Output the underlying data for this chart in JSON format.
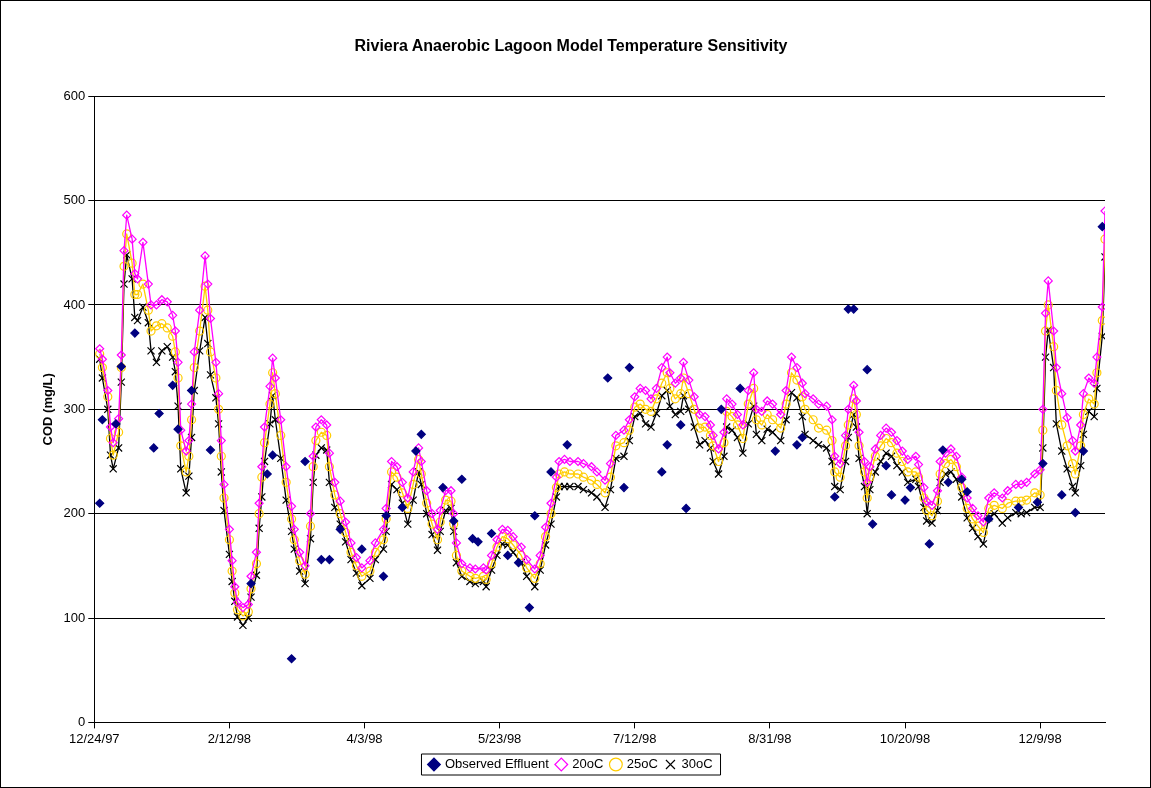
{
  "chart_data": {
    "type": "line",
    "title": "Riviera Anaerobic Lagoon Model Temperature Sensitivity",
    "ylabel": "COD (mg/L)",
    "xlim": [
      "1997-12-24",
      "1999-01-02"
    ],
    "xticks": [
      {
        "value": "1997-12-24",
        "label": "12/24/97"
      },
      {
        "value": "1998-02-12",
        "label": "2/12/98"
      },
      {
        "value": "1998-04-03",
        "label": "4/3/98"
      },
      {
        "value": "1998-05-23",
        "label": "5/23/98"
      },
      {
        "value": "1998-07-12",
        "label": "7/12/98"
      },
      {
        "value": "1998-08-31",
        "label": "8/31/98"
      },
      {
        "value": "1998-10-20",
        "label": "10/20/98"
      },
      {
        "value": "1998-12-09",
        "label": "12/9/98"
      }
    ],
    "ylim": [
      0,
      600
    ],
    "yticks": [
      0,
      100,
      200,
      300,
      400,
      500,
      600
    ],
    "grid": "y",
    "legend": "bottom",
    "x": [
      "1997-12-26",
      "1997-12-27",
      "1997-12-29",
      "1997-12-30",
      "1997-12-31",
      "1998-01-02",
      "1998-01-03",
      "1998-01-04",
      "1998-01-05",
      "1998-01-07",
      "1998-01-08",
      "1998-01-09",
      "1998-01-11",
      "1998-01-13",
      "1998-01-14",
      "1998-01-16",
      "1998-01-18",
      "1998-01-20",
      "1998-01-22",
      "1998-01-23",
      "1998-01-24",
      "1998-01-25",
      "1998-01-27",
      "1998-01-28",
      "1998-01-29",
      "1998-01-30",
      "1998-02-01",
      "1998-02-03",
      "1998-02-04",
      "1998-02-05",
      "1998-02-07",
      "1998-02-08",
      "1998-02-09",
      "1998-02-10",
      "1998-02-12",
      "1998-02-13",
      "1998-02-14",
      "1998-02-15",
      "1998-02-17",
      "1998-02-19",
      "1998-02-20",
      "1998-02-22",
      "1998-02-23",
      "1998-02-24",
      "1998-02-25",
      "1998-02-27",
      "1998-02-28",
      "1998-03-01",
      "1998-03-03",
      "1998-03-05",
      "1998-03-07",
      "1998-03-08",
      "1998-03-10",
      "1998-03-12",
      "1998-03-14",
      "1998-03-15",
      "1998-03-16",
      "1998-03-18",
      "1998-03-20",
      "1998-03-21",
      "1998-03-23",
      "1998-03-25",
      "1998-03-27",
      "1998-03-29",
      "1998-03-31",
      "1998-04-02",
      "1998-04-05",
      "1998-04-07",
      "1998-04-10",
      "1998-04-11",
      "1998-04-13",
      "1998-04-15",
      "1998-04-17",
      "1998-04-19",
      "1998-04-21",
      "1998-04-23",
      "1998-04-24",
      "1998-04-26",
      "1998-04-28",
      "1998-04-30",
      "1998-05-01",
      "1998-05-03",
      "1998-05-05",
      "1998-05-06",
      "1998-05-07",
      "1998-05-09",
      "1998-05-12",
      "1998-05-14",
      "1998-05-17",
      "1998-05-18",
      "1998-05-20",
      "1998-05-22",
      "1998-05-24",
      "1998-05-26",
      "1998-05-28",
      "1998-05-31",
      "1998-06-02",
      "1998-06-05",
      "1998-06-07",
      "1998-06-09",
      "1998-06-11",
      "1998-06-13",
      "1998-06-14",
      "1998-06-16",
      "1998-06-18",
      "1998-06-21",
      "1998-06-23",
      "1998-06-26",
      "1998-06-28",
      "1998-07-01",
      "1998-07-03",
      "1998-07-05",
      "1998-07-08",
      "1998-07-10",
      "1998-07-12",
      "1998-07-14",
      "1998-07-16",
      "1998-07-18",
      "1998-07-20",
      "1998-07-22",
      "1998-07-24",
      "1998-07-25",
      "1998-07-27",
      "1998-07-29",
      "1998-07-30",
      "1998-08-01",
      "1998-08-03",
      "1998-08-05",
      "1998-08-07",
      "1998-08-09",
      "1998-08-10",
      "1998-08-12",
      "1998-08-14",
      "1998-08-15",
      "1998-08-17",
      "1998-08-19",
      "1998-08-21",
      "1998-08-23",
      "1998-08-25",
      "1998-08-26",
      "1998-08-28",
      "1998-08-30",
      "1998-09-01",
      "1998-09-04",
      "1998-09-06",
      "1998-09-08",
      "1998-09-10",
      "1998-09-12",
      "1998-09-13",
      "1998-09-16",
      "1998-09-18",
      "1998-09-21",
      "1998-09-23",
      "1998-09-24",
      "1998-09-26",
      "1998-09-28",
      "1998-09-29",
      "1998-10-01",
      "1998-10-02",
      "1998-10-03",
      "1998-10-05",
      "1998-10-06",
      "1998-10-07",
      "1998-10-09",
      "1998-10-11",
      "1998-10-13",
      "1998-10-15",
      "1998-10-17",
      "1998-10-19",
      "1998-10-21",
      "1998-10-24",
      "1998-10-25",
      "1998-10-27",
      "1998-10-28",
      "1998-10-30",
      "1998-11-01",
      "1998-11-02",
      "1998-11-04",
      "1998-11-06",
      "1998-11-08",
      "1998-11-10",
      "1998-11-12",
      "1998-11-14",
      "1998-11-16",
      "1998-11-18",
      "1998-11-20",
      "1998-11-22",
      "1998-11-25",
      "1998-11-27",
      "1998-11-30",
      "1998-12-02",
      "1998-12-04",
      "1998-12-07",
      "1998-12-09",
      "1998-12-10",
      "1998-12-11",
      "1998-12-12",
      "1998-12-14",
      "1998-12-15",
      "1998-12-17",
      "1998-12-19",
      "1998-12-21",
      "1998-12-22",
      "1998-12-24",
      "1998-12-25",
      "1998-12-27",
      "1998-12-29",
      "1998-12-30",
      "1999-01-01",
      "1999-01-02"
    ],
    "series": [
      {
        "name": "Observed Effluent",
        "type": "scatter",
        "marker": "diamond",
        "color": "#000080",
        "x": [
          "1997-12-26",
          "1997-12-27",
          "1998-01-01",
          "1998-01-03",
          "1998-01-08",
          "1998-01-15",
          "1998-01-17",
          "1998-01-22",
          "1998-01-24",
          "1998-01-29",
          "1998-02-05",
          "1998-02-20",
          "1998-02-26",
          "1998-02-28",
          "1998-03-07",
          "1998-03-12",
          "1998-03-18",
          "1998-03-21",
          "1998-03-25",
          "1998-04-02",
          "1998-04-10",
          "1998-04-11",
          "1998-04-17",
          "1998-04-22",
          "1998-04-24",
          "1998-05-02",
          "1998-05-06",
          "1998-05-09",
          "1998-05-13",
          "1998-05-15",
          "1998-05-20",
          "1998-05-26",
          "1998-05-30",
          "1998-06-03",
          "1998-06-05",
          "1998-06-11",
          "1998-06-17",
          "1998-07-02",
          "1998-07-08",
          "1998-07-10",
          "1998-07-22",
          "1998-07-24",
          "1998-07-29",
          "1998-07-31",
          "1998-08-13",
          "1998-08-20",
          "1998-09-02",
          "1998-09-10",
          "1998-09-12",
          "1998-09-24",
          "1998-09-29",
          "1998-10-01",
          "1998-10-06",
          "1998-10-08",
          "1998-10-13",
          "1998-10-15",
          "1998-10-20",
          "1998-10-22",
          "1998-10-29",
          "1998-11-03",
          "1998-11-05",
          "1998-11-10",
          "1998-11-12",
          "1998-11-20",
          "1998-12-01",
          "1998-12-08",
          "1998-12-10",
          "1998-12-17",
          "1998-12-22",
          "1998-12-25",
          "1999-01-01"
        ],
        "values": [
          210,
          290,
          286,
          341,
          373,
          263,
          296,
          323,
          281,
          318,
          261,
          133,
          238,
          256,
          61,
          250,
          156,
          156,
          185,
          166,
          140,
          198,
          206,
          260,
          276,
          225,
          193,
          233,
          176,
          173,
          181,
          160,
          153,
          110,
          198,
          240,
          266,
          330,
          225,
          340,
          240,
          266,
          285,
          205,
          300,
          320,
          260,
          266,
          273,
          216,
          396,
          396,
          338,
          190,
          246,
          218,
          213,
          225,
          171,
          261,
          230,
          233,
          221,
          195,
          206,
          211,
          248,
          218,
          201,
          260,
          475
        ]
      },
      {
        "name": "20oC",
        "marker": "diamond_open",
        "color": "#ff00ff",
        "values": [
          358,
          348,
          318,
          283,
          268,
          291,
          352,
          452,
          486,
          463,
          430,
          425,
          460,
          420,
          400,
          400,
          405,
          403,
          390,
          375,
          345,
          280,
          260,
          270,
          305,
          355,
          395,
          447,
          420,
          387,
          345,
          315,
          270,
          228,
          185,
          155,
          130,
          115,
          110,
          113,
          140,
          163,
          210,
          245,
          283,
          322,
          349,
          330,
          290,
          245,
          207,
          185,
          163,
          150,
          200,
          255,
          283,
          290,
          285,
          258,
          230,
          212,
          192,
          172,
          158,
          148,
          155,
          172,
          185,
          205,
          250,
          245,
          230,
          215,
          240,
          263,
          250,
          222,
          200,
          185,
          203,
          222,
          222,
          200,
          172,
          152,
          148,
          147,
          148,
          146,
          160,
          175,
          185,
          184,
          178,
          168,
          156,
          147,
          160,
          187,
          210,
          235,
          250,
          252,
          250,
          250,
          248,
          245,
          240,
          232,
          248,
          275,
          280,
          290,
          312,
          320,
          318,
          310,
          320,
          340,
          350,
          335,
          325,
          330,
          345,
          328,
          312,
          295,
          293,
          285,
          275,
          262,
          278,
          310,
          305,
          295,
          285,
          318,
          335,
          300,
          298,
          308,
          305,
          295,
          318,
          350,
          340,
          325,
          315,
          310,
          305,
          303,
          290,
          255,
          248,
          275,
          300,
          323,
          308,
          278,
          250,
          230,
          245,
          262,
          275,
          282,
          278,
          270,
          260,
          252,
          255,
          247,
          225,
          212,
          208,
          222,
          250,
          258,
          262,
          255,
          235,
          215,
          205,
          198,
          192,
          215,
          220,
          215,
          222,
          228,
          228,
          230,
          238,
          242,
          300,
          392,
          423,
          375,
          340,
          315,
          292,
          270,
          260,
          285,
          315,
          330,
          325,
          350,
          398,
          490
        ]
      },
      {
        "name": "25oC",
        "marker": "circle_open",
        "color": "#ffcc00",
        "values": [
          353,
          340,
          312,
          272,
          256,
          278,
          340,
          437,
          468,
          440,
          410,
          410,
          420,
          395,
          375,
          380,
          382,
          378,
          370,
          355,
          330,
          265,
          240,
          255,
          290,
          340,
          375,
          418,
          395,
          355,
          330,
          300,
          255,
          215,
          175,
          145,
          124,
          108,
          102,
          106,
          128,
          152,
          200,
          235,
          268,
          305,
          335,
          315,
          275,
          230,
          195,
          175,
          155,
          142,
          188,
          245,
          270,
          278,
          275,
          245,
          218,
          200,
          182,
          163,
          150,
          140,
          145,
          163,
          175,
          195,
          240,
          235,
          220,
          205,
          228,
          252,
          238,
          210,
          190,
          175,
          192,
          213,
          212,
          190,
          160,
          145,
          140,
          138,
          140,
          137,
          152,
          168,
          178,
          176,
          170,
          160,
          148,
          138,
          152,
          178,
          200,
          225,
          238,
          240,
          238,
          238,
          235,
          232,
          228,
          220,
          235,
          265,
          268,
          280,
          302,
          305,
          300,
          298,
          310,
          325,
          335,
          320,
          310,
          315,
          330,
          315,
          300,
          282,
          283,
          275,
          265,
          250,
          268,
          298,
          293,
          285,
          272,
          305,
          320,
          290,
          285,
          295,
          290,
          282,
          305,
          335,
          328,
          312,
          300,
          290,
          282,
          280,
          270,
          240,
          235,
          265,
          285,
          310,
          295,
          265,
          240,
          215,
          235,
          255,
          265,
          272,
          268,
          258,
          250,
          240,
          240,
          235,
          215,
          203,
          198,
          212,
          238,
          248,
          252,
          245,
          225,
          205,
          195,
          188,
          182,
          205,
          208,
          205,
          210,
          212,
          212,
          213,
          220,
          218,
          280,
          375,
          400,
          360,
          318,
          285,
          265,
          248,
          238,
          265,
          295,
          310,
          305,
          335,
          385,
          463
        ]
      },
      {
        "name": "30oC",
        "marker": "cross",
        "color": "#000000",
        "values": [
          348,
          330,
          300,
          256,
          243,
          263,
          326,
          420,
          448,
          425,
          388,
          385,
          398,
          383,
          356,
          345,
          356,
          360,
          350,
          336,
          303,
          243,
          220,
          236,
          273,
          318,
          356,
          388,
          363,
          333,
          311,
          286,
          240,
          203,
          161,
          135,
          116,
          101,
          93,
          100,
          120,
          141,
          186,
          216,
          250,
          286,
          313,
          290,
          253,
          213,
          183,
          166,
          145,
          133,
          176,
          230,
          256,
          263,
          261,
          230,
          206,
          190,
          173,
          156,
          143,
          131,
          138,
          156,
          166,
          183,
          228,
          223,
          210,
          190,
          213,
          240,
          228,
          200,
          180,
          165,
          183,
          203,
          205,
          183,
          153,
          140,
          135,
          133,
          135,
          130,
          146,
          160,
          171,
          170,
          163,
          153,
          140,
          130,
          146,
          170,
          190,
          216,
          226,
          226,
          226,
          226,
          223,
          220,
          216,
          206,
          223,
          253,
          255,
          270,
          293,
          296,
          286,
          283,
          296,
          313,
          318,
          303,
          295,
          298,
          313,
          300,
          283,
          266,
          270,
          263,
          250,
          238,
          255,
          283,
          280,
          273,
          258,
          286,
          303,
          276,
          270,
          281,
          278,
          270,
          290,
          316,
          311,
          293,
          276,
          270,
          266,
          263,
          250,
          226,
          223,
          250,
          273,
          295,
          283,
          253,
          226,
          200,
          223,
          240,
          250,
          258,
          255,
          246,
          240,
          230,
          233,
          226,
          206,
          193,
          191,
          203,
          230,
          238,
          240,
          233,
          216,
          196,
          186,
          178,
          171,
          196,
          200,
          191,
          196,
          201,
          200,
          201,
          206,
          206,
          263,
          350,
          376,
          340,
          286,
          260,
          243,
          226,
          220,
          246,
          276,
          298,
          293,
          320,
          370,
          446
        ]
      }
    ]
  }
}
